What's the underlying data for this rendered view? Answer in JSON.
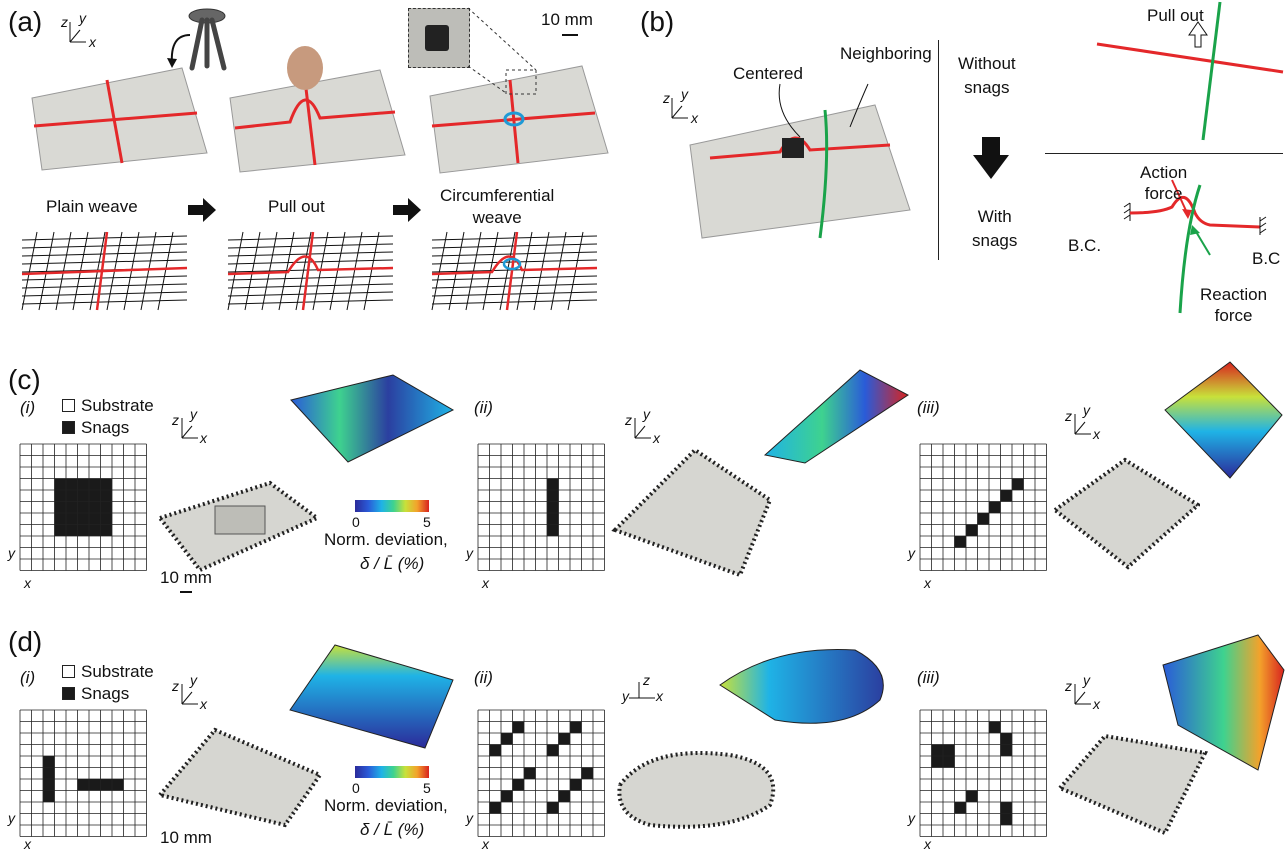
{
  "panels": {
    "a": {
      "label": "(a)",
      "scale_bar": "10 mm",
      "steps": [
        "Plain weave",
        "Pull out",
        "Circumferential\nweave"
      ]
    },
    "b": {
      "label": "(b)",
      "centered": "Centered",
      "neighboring": "Neighboring",
      "without_snags": "Without\nsnags",
      "with_snags": "With\nsnags",
      "pull_out": "Pull out",
      "action_force": "Action\nforce",
      "reaction_force": "Reaction\nforce",
      "bc_left": "B.C.",
      "bc_right": "B.C"
    },
    "c": {
      "label": "(c)",
      "sub": [
        "(i)",
        "(ii)",
        "(iii)"
      ],
      "legend_substrate": "Substrate",
      "legend_snags": "Snags",
      "colorbar_min": "0",
      "colorbar_max": "5",
      "colorbar_title": "Norm. deviation,",
      "colorbar_unit": "δ / L̄ (%)",
      "scale_bar": "10 mm"
    },
    "d": {
      "label": "(d)",
      "sub": [
        "(i)",
        "(ii)",
        "(iii)"
      ],
      "legend_substrate": "Substrate",
      "legend_snags": "Snags",
      "colorbar_min": "0",
      "colorbar_max": "5",
      "colorbar_title": "Norm. deviation,",
      "colorbar_unit": "δ / L̄ (%)",
      "scale_bar": "10 mm"
    }
  },
  "axes": {
    "x": "x",
    "y": "y",
    "z": "z"
  },
  "colors": {
    "fiber_red": "#e4282a",
    "fiber_green": "#1aa34a",
    "ring_blue": "#1e9ad6",
    "snag": "#1a1a1a"
  },
  "snag_patterns": {
    "c_i": [
      [
        3,
        3,
        5,
        5
      ]
    ],
    "c_ii": [
      [
        6,
        3,
        1,
        5
      ]
    ],
    "c_iii": [
      [
        3,
        8,
        1,
        1
      ],
      [
        4,
        7,
        1,
        1
      ],
      [
        5,
        6,
        1,
        1
      ],
      [
        6,
        5,
        1,
        1
      ],
      [
        7,
        4,
        1,
        1
      ],
      [
        8,
        3,
        1,
        1
      ]
    ],
    "d_i": [
      [
        2,
        4,
        1,
        4
      ],
      [
        5,
        6,
        4,
        1
      ]
    ],
    "d_ii": [
      [
        1,
        8,
        1,
        1
      ],
      [
        2,
        7,
        1,
        1
      ],
      [
        3,
        6,
        1,
        1
      ],
      [
        4,
        5,
        1,
        1
      ],
      [
        6,
        8,
        1,
        1
      ],
      [
        7,
        7,
        1,
        1
      ],
      [
        8,
        6,
        1,
        1
      ],
      [
        9,
        5,
        1,
        1
      ],
      [
        1,
        3,
        1,
        1
      ],
      [
        2,
        2,
        1,
        1
      ],
      [
        3,
        1,
        1,
        1
      ],
      [
        6,
        3,
        1,
        1
      ],
      [
        7,
        2,
        1,
        1
      ],
      [
        8,
        1,
        1,
        1
      ]
    ],
    "d_iii": [
      [
        3,
        8,
        1,
        1
      ],
      [
        4,
        7,
        1,
        1
      ],
      [
        7,
        8,
        1,
        2
      ],
      [
        1,
        3,
        2,
        2
      ],
      [
        6,
        1,
        1,
        1
      ],
      [
        7,
        2,
        1,
        2
      ]
    ]
  }
}
